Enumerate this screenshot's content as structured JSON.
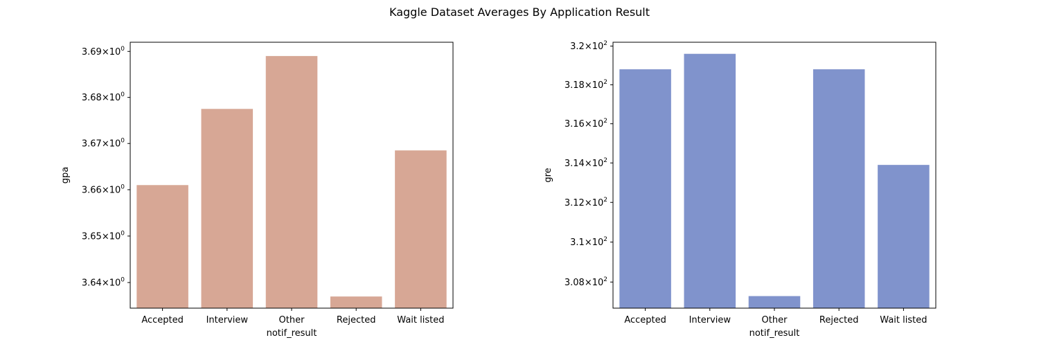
{
  "figure": {
    "title": "Kaggle Dataset Averages By Application Result"
  },
  "chart_data": [
    {
      "type": "bar",
      "title": "",
      "xlabel": "notif_result",
      "ylabel": "gpa",
      "yscale": "log",
      "categories": [
        "Accepted",
        "Interview",
        "Other",
        "Rejected",
        "Wait listed"
      ],
      "values": [
        3.661,
        3.6775,
        3.689,
        3.637,
        3.6685
      ],
      "ylim": [
        3.6345,
        3.692
      ],
      "yticks": [
        {
          "value": 3.64,
          "mantissa": "3.64",
          "exponent": "0"
        },
        {
          "value": 3.65,
          "mantissa": "3.65",
          "exponent": "0"
        },
        {
          "value": 3.66,
          "mantissa": "3.66",
          "exponent": "0"
        },
        {
          "value": 3.67,
          "mantissa": "3.67",
          "exponent": "0"
        },
        {
          "value": 3.68,
          "mantissa": "3.68",
          "exponent": "0"
        },
        {
          "value": 3.69,
          "mantissa": "3.69",
          "exponent": "0"
        }
      ],
      "color": "#d7a795",
      "grid": false
    },
    {
      "type": "bar",
      "title": "",
      "xlabel": "notif_result",
      "ylabel": "gre",
      "yscale": "log",
      "categories": [
        "Accepted",
        "Interview",
        "Other",
        "Rejected",
        "Wait listed"
      ],
      "values": [
        318.8,
        319.6,
        307.3,
        318.8,
        313.9
      ],
      "ylim": [
        306.7,
        320.2
      ],
      "yticks": [
        {
          "value": 308,
          "mantissa": "3.08",
          "exponent": "2"
        },
        {
          "value": 310,
          "mantissa": "3.1",
          "exponent": "2"
        },
        {
          "value": 312,
          "mantissa": "3.12",
          "exponent": "2"
        },
        {
          "value": 314,
          "mantissa": "3.14",
          "exponent": "2"
        },
        {
          "value": 316,
          "mantissa": "3.16",
          "exponent": "2"
        },
        {
          "value": 318,
          "mantissa": "3.18",
          "exponent": "2"
        },
        {
          "value": 320,
          "mantissa": "3.2",
          "exponent": "2"
        }
      ],
      "color": "#8093cc",
      "grid": false
    }
  ]
}
